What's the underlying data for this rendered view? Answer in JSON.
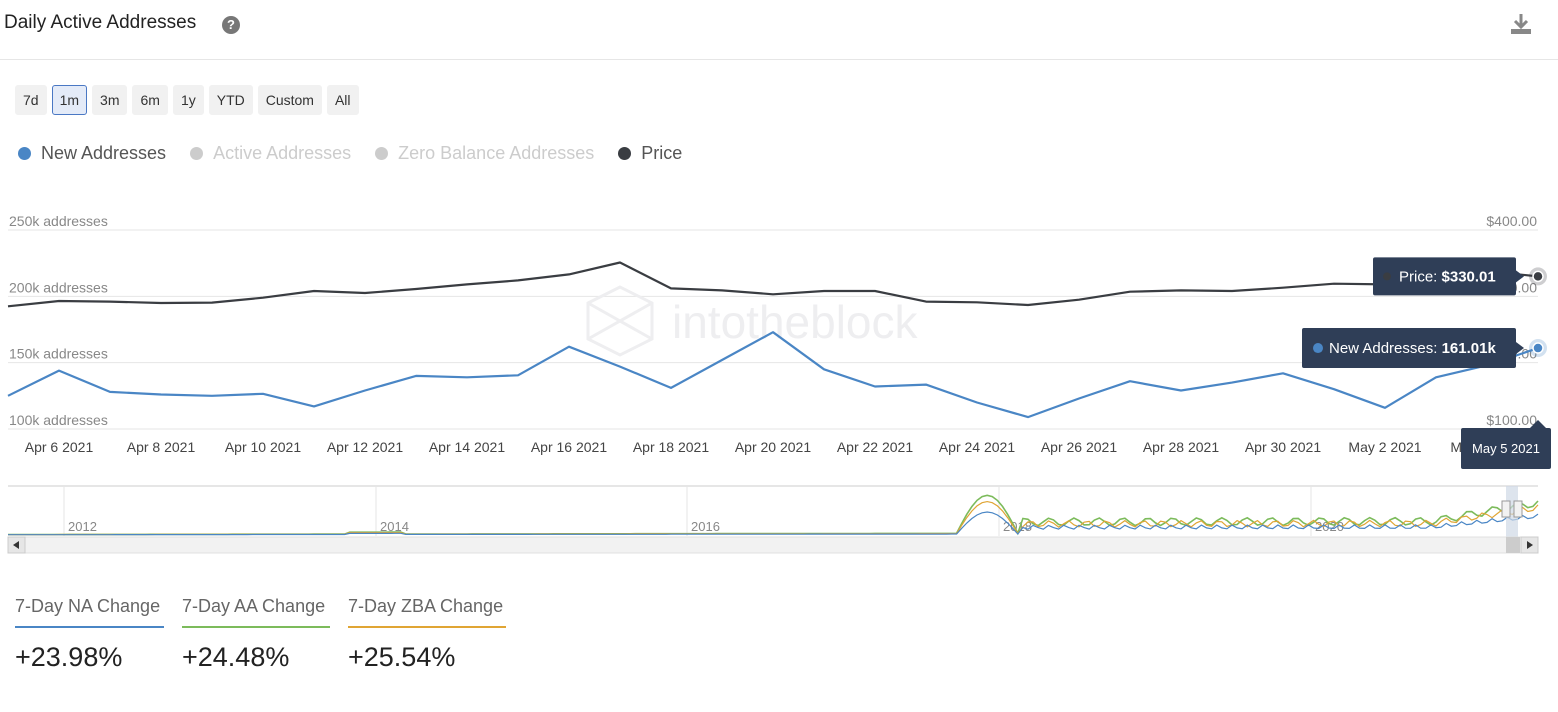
{
  "header": {
    "title": "Daily Active Addresses",
    "help_glyph": "?"
  },
  "ranges": [
    "7d",
    "1m",
    "3m",
    "6m",
    "1y",
    "YTD",
    "Custom",
    "All"
  ],
  "active_range": "1m",
  "legend": [
    {
      "label": "New Addresses",
      "color": "#4a86c5",
      "enabled": true
    },
    {
      "label": "Active Addresses",
      "color": "#cccccc",
      "enabled": false
    },
    {
      "label": "Zero Balance Addresses",
      "color": "#cccccc",
      "enabled": false
    },
    {
      "label": "Price",
      "color": "#3a3d42",
      "enabled": true
    }
  ],
  "watermark": "intotheblock",
  "chart_data": {
    "type": "line",
    "x": [
      "Apr 5 2021",
      "Apr 6 2021",
      "Apr 7 2021",
      "Apr 8 2021",
      "Apr 9 2021",
      "Apr 10 2021",
      "Apr 11 2021",
      "Apr 12 2021",
      "Apr 13 2021",
      "Apr 14 2021",
      "Apr 15 2021",
      "Apr 16 2021",
      "Apr 17 2021",
      "Apr 18 2021",
      "Apr 19 2021",
      "Apr 20 2021",
      "Apr 21 2021",
      "Apr 22 2021",
      "Apr 23 2021",
      "Apr 24 2021",
      "Apr 25 2021",
      "Apr 26 2021",
      "Apr 27 2021",
      "Apr 28 2021",
      "Apr 29 2021",
      "Apr 30 2021",
      "May 1 2021",
      "May 2 2021",
      "May 3 2021",
      "May 4 2021",
      "May 5 2021"
    ],
    "x_ticks": [
      "Apr 6 2021",
      "Apr 8 2021",
      "Apr 10 2021",
      "Apr 12 2021",
      "Apr 14 2021",
      "Apr 16 2021",
      "Apr 18 2021",
      "Apr 20 2021",
      "Apr 22 2021",
      "Apr 24 2021",
      "Apr 26 2021",
      "Apr 28 2021",
      "Apr 30 2021",
      "May 2 2021",
      "May 4 2021"
    ],
    "series": [
      {
        "name": "New Addresses",
        "axis": "left",
        "color": "#4a86c5",
        "values": [
          125000,
          144000,
          128000,
          126000,
          125000,
          126500,
          117000,
          129000,
          140000,
          139000,
          140500,
          162000,
          147000,
          131000,
          152000,
          173000,
          145000,
          132000,
          133500,
          120000,
          109000,
          123000,
          136000,
          129000,
          135000,
          142000,
          130000,
          116000,
          139000,
          148000,
          161010
        ]
      },
      {
        "name": "Price",
        "axis": "right",
        "color": "#3a3d42",
        "values": [
          285,
          293,
          292,
          290,
          290.5,
          298,
          308,
          305,
          311,
          318,
          324,
          333,
          351,
          312,
          309,
          303,
          308,
          308,
          292,
          291,
          287,
          295,
          307,
          309,
          308,
          313,
          319,
          318,
          327,
          338,
          330.01
        ]
      }
    ],
    "y_left": {
      "ticks": [
        "100k addresses",
        "150k addresses",
        "200k addresses",
        "250k addresses"
      ],
      "range": [
        100000,
        250000
      ]
    },
    "y_right": {
      "ticks": [
        "$100.00",
        "$200.00",
        "$300.00",
        "$400.00"
      ],
      "range": [
        100,
        400
      ]
    },
    "tooltip": {
      "date": "May 5 2021",
      "price_label": "Price:",
      "price_value": "$330.01",
      "na_label": "New Addresses:",
      "na_value": "161.01k"
    }
  },
  "navigator": {
    "years": [
      "2012",
      "2014",
      "2016",
      "2018",
      "2020"
    ]
  },
  "stats": [
    {
      "label": "7-Day NA Change",
      "value": "+23.98%"
    },
    {
      "label": "7-Day AA Change",
      "value": "+24.48%"
    },
    {
      "label": "7-Day ZBA Change",
      "value": "+25.54%"
    }
  ]
}
